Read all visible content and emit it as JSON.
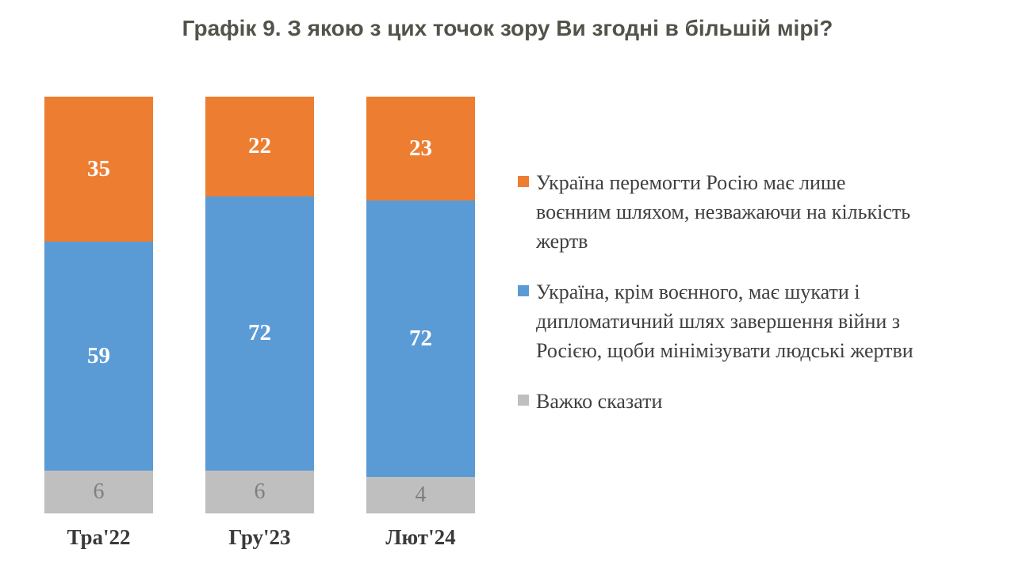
{
  "title": "Графік 9. З якою з цих точок зору Ви згодні в більшій мірі?",
  "chart_data": {
    "type": "bar",
    "stacked": true,
    "orientation": "vertical",
    "categories": [
      "Тра'22",
      "Гру'23",
      "Лют'24"
    ],
    "series": [
      {
        "name": "Україна перемогти Росію має лише воєнним шляхом, незважаючи на кількість жертв",
        "color": "#ED7D31",
        "label_color": "#FFFFFF",
        "values": [
          35,
          22,
          23
        ]
      },
      {
        "name": "Україна, крім воєнного, має шукати і дипломатичний шлях завершення війни з Росією, щоби мінімізувати людські жертви",
        "color": "#5B9BD5",
        "label_color": "#FFFFFF",
        "values": [
          59,
          72,
          72
        ]
      },
      {
        "name": "Важко сказати",
        "color": "#BFBFBF",
        "label_color": "#7F7F7F",
        "values": [
          6,
          6,
          4
        ]
      }
    ],
    "ylim": [
      0,
      100
    ],
    "grid": false,
    "legend_position": "right",
    "bar_value_labels": true
  },
  "legend": {
    "items": [
      {
        "color": "#ED7D31",
        "lines": [
          "Україна перемогти Росію має лише",
          "воєнним шляхом, незважаючи на кількість",
          "жертв"
        ]
      },
      {
        "color": "#5B9BD5",
        "lines": [
          "Україна, крім воєнного, має шукати і",
          "дипломатичний шлях завершення війни з",
          "Росією, щоби мінімізувати людські жертви"
        ]
      },
      {
        "color": "#BFBFBF",
        "lines": [
          "Важко сказати"
        ]
      }
    ]
  }
}
